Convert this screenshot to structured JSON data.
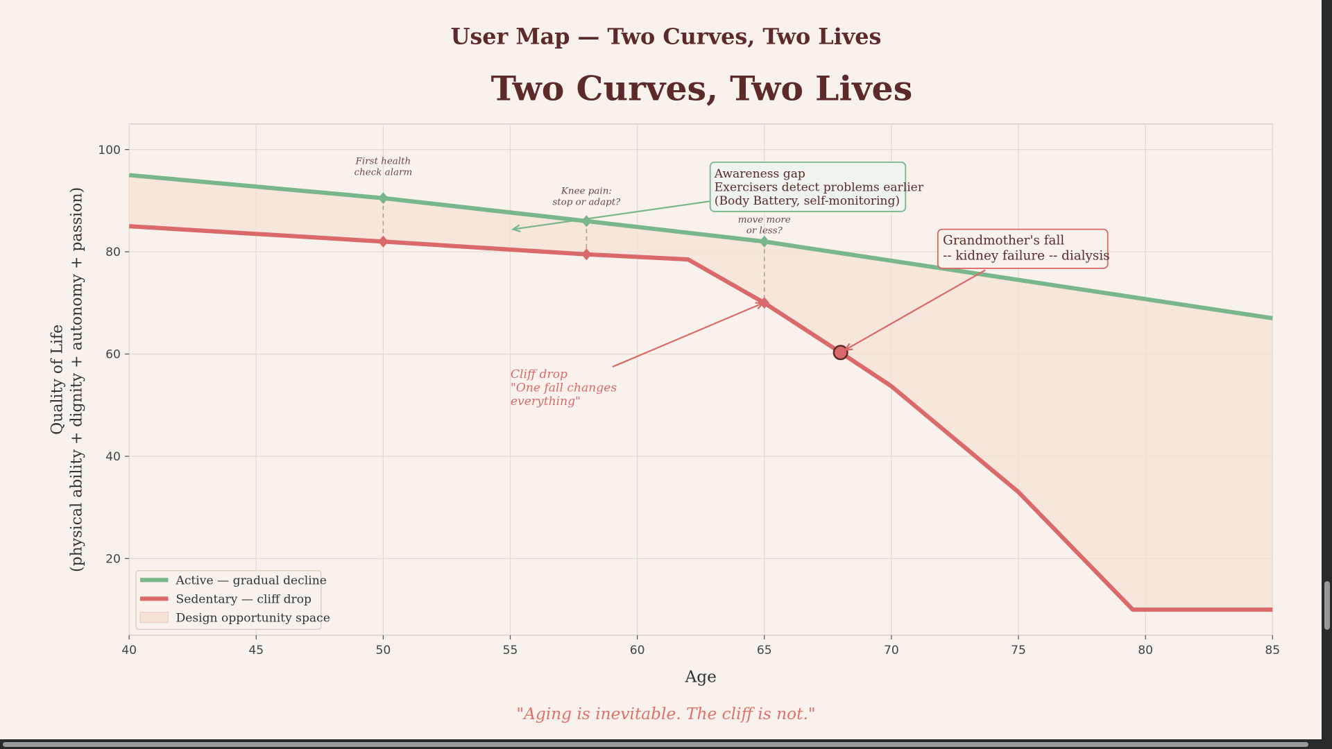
{
  "page_title": "User Map — Two Curves, Two Lives",
  "footer_quote": "\"Aging is inevitable. The cliff is not.\"",
  "colors": {
    "background": "#f9f2ec",
    "title": "#5c2a2a",
    "active": "#7ab68c",
    "sedentary": "#d9696a",
    "fill": "#f5e2d6",
    "quote": "#e0706a"
  },
  "chart_data": {
    "type": "line",
    "title": "Two Curves, Two Lives",
    "xlabel": "Age",
    "ylabel": "Quality of Life\n(physical ability + dignity + autonomy + passion)",
    "xlim": [
      40,
      85
    ],
    "ylim": [
      5,
      105
    ],
    "xticks": [
      40,
      45,
      50,
      55,
      60,
      65,
      70,
      75,
      80,
      85
    ],
    "yticks": [
      20,
      40,
      60,
      80,
      100
    ],
    "grid": true,
    "legend_position": "bottom-left",
    "series": [
      {
        "name": "Active — gradual decline",
        "color": "#7ab68c",
        "x": [
          40,
          50,
          58,
          65,
          85
        ],
        "y": [
          95,
          90.5,
          86,
          82,
          67
        ]
      },
      {
        "name": "Sedentary — cliff drop",
        "color": "#d9696a",
        "x": [
          40,
          50,
          58,
          62,
          65,
          68,
          70,
          75,
          79.5,
          85
        ],
        "y": [
          85,
          82,
          79.5,
          78.5,
          70,
          60.3,
          53.7,
          33,
          10,
          10
        ]
      }
    ],
    "fill_name": "Design opportunity space",
    "milestones": [
      {
        "age": 50,
        "active": 90.5,
        "sedentary": 82,
        "label": [
          "First health",
          "check alarm"
        ]
      },
      {
        "age": 58,
        "active": 86,
        "sedentary": 79.5,
        "label": [
          "Knee pain:",
          "stop or adapt?"
        ]
      },
      {
        "age": 65,
        "active": 82,
        "sedentary": 70,
        "label": [
          "move more",
          "or less?"
        ]
      }
    ],
    "highlight_point": {
      "x": 68,
      "y": 60.3
    },
    "annotations": {
      "awareness": [
        "Awareness gap",
        "Exercisers detect problems earlier",
        "(Body Battery, self-monitoring)"
      ],
      "grandmother": [
        "Grandmother's fall",
        "-- kidney failure -- dialysis"
      ],
      "cliff": [
        "Cliff drop",
        "\"One fall changes",
        " everything\""
      ]
    }
  }
}
